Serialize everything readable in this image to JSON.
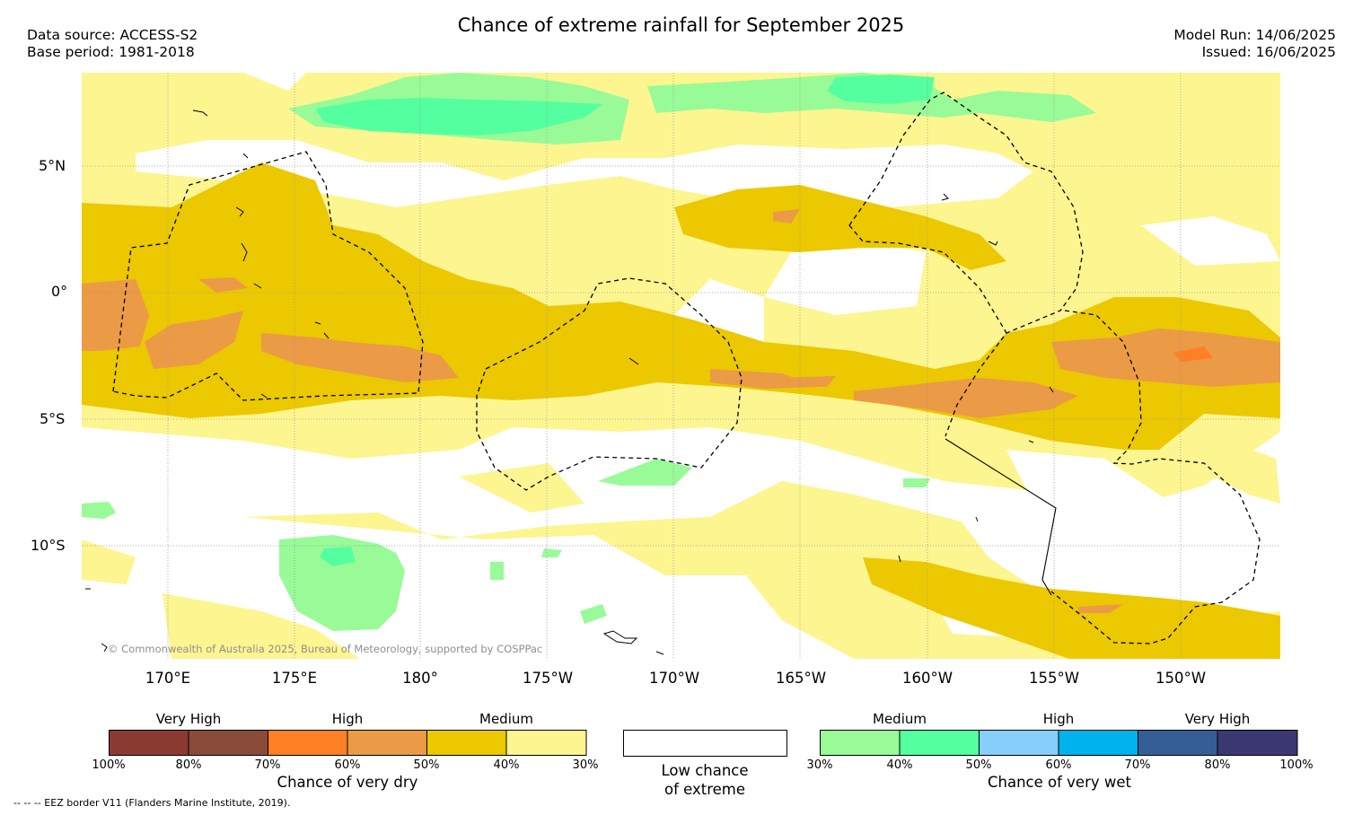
{
  "title": "Chance of extreme rainfall for September 2025",
  "data_source": "Data source: ACCESS-S2",
  "base_period": "Base period: 1981-2018",
  "model_run": "Model Run: 14/06/2025",
  "issued": "Issued: 16/06/2025",
  "lat_labels": [
    "5°N",
    "0°",
    "5°S",
    "10°S"
  ],
  "lon_labels": [
    "170°E",
    "175°E",
    "180°",
    "175°W",
    "170°W",
    "165°W",
    "160°W",
    "155°W",
    "150°W"
  ],
  "copyright": "© Commonwealth of Australia 2025, Bureau of Meteorology, supported by COSPPac",
  "eez_note": "--  --  -- EEZ border V11 (Flanders Marine Institute, 2019).",
  "legend_dry": {
    "levels": [
      "Very High",
      "High",
      "Medium"
    ],
    "ticks": [
      "100%",
      "80%",
      "70%",
      "60%",
      "50%",
      "40%",
      "30%"
    ],
    "colors": [
      "#8B3A32",
      "#8A4B3A",
      "#FF7F24",
      "#EB9A46",
      "#EBC800",
      "#FDF590"
    ],
    "caption": "Chance of very dry"
  },
  "legend_low": {
    "line1": "Low chance",
    "line2": "of extreme",
    "color": "#ffffff"
  },
  "legend_wet": {
    "levels": [
      "Medium",
      "High",
      "Very High"
    ],
    "ticks": [
      "30%",
      "40%",
      "50%",
      "60%",
      "70%",
      "80%",
      "100%"
    ],
    "colors": [
      "#98FB98",
      "#54FF9F",
      "#87CEFA",
      "#00B2EE",
      "#365E96",
      "#3B3874"
    ],
    "caption": "Chance of very wet"
  }
}
